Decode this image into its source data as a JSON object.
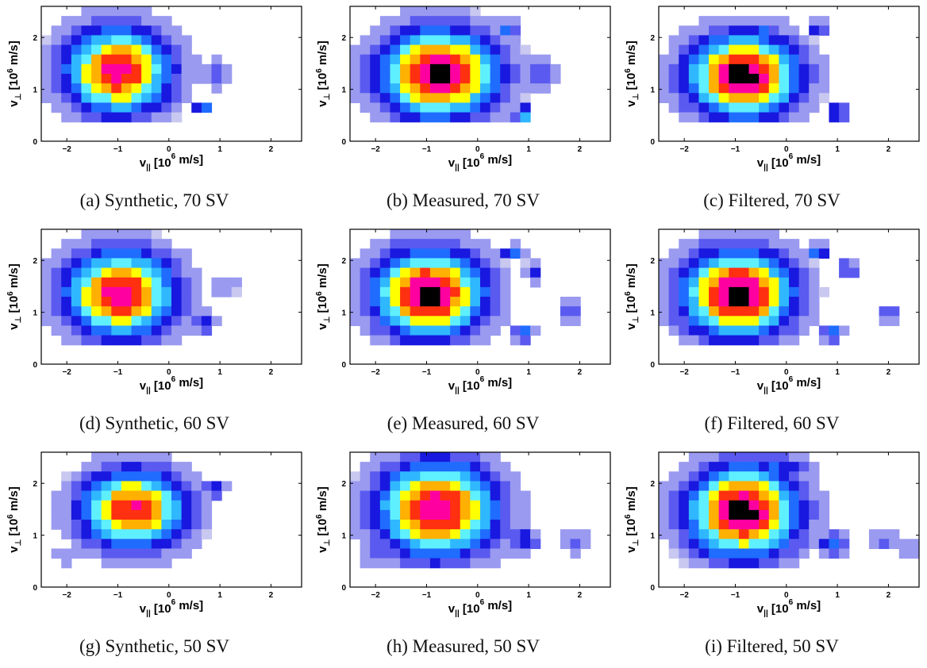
{
  "axis_labels": {
    "x_main": "v",
    "x_sub": "||",
    "x_unit_pre": " [10",
    "x_unit_exp": "6",
    "x_unit_post": " m/s]",
    "y_main": "v",
    "y_sub": "⊥",
    "y_unit_pre": " [10",
    "y_unit_exp": "6",
    "y_unit_post": " m/s]"
  },
  "colors": {
    "levels": [
      "#c8c8f0",
      "#9a9af0",
      "#5a5af0",
      "#1818e0",
      "#1f6cff",
      "#2fb8ff",
      "#5ff0ff",
      "#ffff00",
      "#ffb000",
      "#ff3010",
      "#ff00a0",
      "#000000"
    ]
  },
  "chart_data": [
    {
      "type": "heatmap",
      "caption": "(a) Synthetic, 70 SV",
      "xlim": [
        -2.5,
        2.6
      ],
      "ylim": [
        0,
        2.6
      ],
      "xticks": [
        -2,
        -1,
        0,
        1,
        2
      ],
      "yticks": [
        0,
        1,
        2
      ],
      "blobs": [
        {
          "cx": -1.0,
          "cy": 1.35,
          "rx": 1.3,
          "ry": 1.05,
          "peak": 0.88
        },
        {
          "cx": -1.25,
          "cy": 1.75,
          "rx": 0.25,
          "ry": 0.22,
          "peak": 0.35
        },
        {
          "cx": 0.65,
          "cy": 0.65,
          "rx": 0.18,
          "ry": 0.12,
          "peak": 0.5
        },
        {
          "cx": 0.9,
          "cy": 1.3,
          "rx": 0.45,
          "ry": 0.4,
          "peak": 0.2
        }
      ]
    },
    {
      "type": "heatmap",
      "caption": "(b) Measured, 70 SV",
      "xlim": [
        -2.5,
        2.6
      ],
      "ylim": [
        0,
        2.6
      ],
      "xticks": [
        -2,
        -1,
        0,
        1,
        2
      ],
      "yticks": [
        0,
        1,
        2
      ],
      "blobs": [
        {
          "cx": -0.75,
          "cy": 1.3,
          "rx": 1.45,
          "ry": 1.05,
          "peak": 0.98
        },
        {
          "cx": -1.55,
          "cy": 1.85,
          "rx": 0.22,
          "ry": 0.2,
          "peak": 0.45
        },
        {
          "cx": 0.6,
          "cy": 2.2,
          "rx": 0.25,
          "ry": 0.15,
          "peak": 0.5
        },
        {
          "cx": 0.9,
          "cy": 0.5,
          "rx": 0.2,
          "ry": 0.3,
          "peak": 0.5
        },
        {
          "cx": 1.2,
          "cy": 1.3,
          "rx": 0.45,
          "ry": 0.5,
          "peak": 0.25
        }
      ]
    },
    {
      "type": "heatmap",
      "caption": "(c) Filtered, 70 SV",
      "xlim": [
        -2.5,
        2.6
      ],
      "ylim": [
        0,
        2.6
      ],
      "xticks": [
        -2,
        -1,
        0,
        1,
        2
      ],
      "yticks": [
        0,
        1,
        2
      ],
      "blobs": [
        {
          "cx": -0.85,
          "cy": 1.25,
          "rx": 1.35,
          "ry": 1.0,
          "peak": 0.98
        },
        {
          "cx": -0.5,
          "cy": 2.1,
          "rx": 0.35,
          "ry": 0.25,
          "peak": 0.4
        },
        {
          "cx": 0.6,
          "cy": 2.2,
          "rx": 0.22,
          "ry": 0.15,
          "peak": 0.45
        },
        {
          "cx": 1.0,
          "cy": 0.55,
          "rx": 0.25,
          "ry": 0.25,
          "peak": 0.4
        },
        {
          "cx": -2.0,
          "cy": 0.7,
          "rx": 0.6,
          "ry": 0.3,
          "peak": 0.15
        }
      ]
    },
    {
      "type": "heatmap",
      "caption": "(d) Synthetic, 60 SV",
      "xlim": [
        -2.5,
        2.6
      ],
      "ylim": [
        0,
        2.6
      ],
      "xticks": [
        -2,
        -1,
        0,
        1,
        2
      ],
      "yticks": [
        0,
        1,
        2
      ],
      "blobs": [
        {
          "cx": -0.95,
          "cy": 1.35,
          "rx": 1.35,
          "ry": 1.05,
          "peak": 0.9
        },
        {
          "cx": -1.25,
          "cy": 1.8,
          "rx": 0.25,
          "ry": 0.25,
          "peak": 0.3
        },
        {
          "cx": 0.7,
          "cy": 0.8,
          "rx": 0.3,
          "ry": 0.25,
          "peak": 0.35
        },
        {
          "cx": 1.1,
          "cy": 1.5,
          "rx": 0.4,
          "ry": 0.4,
          "peak": 0.15
        }
      ]
    },
    {
      "type": "heatmap",
      "caption": "(e) Measured, 60 SV",
      "xlim": [
        -2.5,
        2.6
      ],
      "ylim": [
        0,
        2.6
      ],
      "xticks": [
        -2,
        -1,
        0,
        1,
        2
      ],
      "yticks": [
        0,
        1,
        2
      ],
      "blobs": [
        {
          "cx": -0.95,
          "cy": 1.35,
          "rx": 1.35,
          "ry": 1.05,
          "peak": 0.97
        },
        {
          "cx": 0.7,
          "cy": 2.15,
          "rx": 0.3,
          "ry": 0.2,
          "peak": 0.4
        },
        {
          "cx": 1.1,
          "cy": 1.8,
          "rx": 0.25,
          "ry": 0.25,
          "peak": 0.3
        },
        {
          "cx": 0.9,
          "cy": 0.6,
          "rx": 0.25,
          "ry": 0.2,
          "peak": 0.45
        },
        {
          "cx": 1.8,
          "cy": 1.05,
          "rx": 0.35,
          "ry": 0.35,
          "peak": 0.2
        }
      ]
    },
    {
      "type": "heatmap",
      "caption": "(f) Filtered, 60 SV",
      "xlim": [
        -2.5,
        2.6
      ],
      "ylim": [
        0,
        2.6
      ],
      "xticks": [
        -2,
        -1,
        0,
        1,
        2
      ],
      "yticks": [
        0,
        1,
        2
      ],
      "blobs": [
        {
          "cx": -0.95,
          "cy": 1.35,
          "rx": 1.35,
          "ry": 1.05,
          "peak": 0.98
        },
        {
          "cx": 0.6,
          "cy": 2.15,
          "rx": 0.25,
          "ry": 0.2,
          "peak": 0.45
        },
        {
          "cx": 1.2,
          "cy": 1.85,
          "rx": 0.25,
          "ry": 0.2,
          "peak": 0.35
        },
        {
          "cx": 0.9,
          "cy": 0.6,
          "rx": 0.25,
          "ry": 0.2,
          "peak": 0.45
        },
        {
          "cx": 2.0,
          "cy": 0.95,
          "rx": 0.3,
          "ry": 0.25,
          "peak": 0.25
        }
      ]
    },
    {
      "type": "heatmap",
      "caption": "(g) Synthetic, 50 SV",
      "xlim": [
        -2.5,
        2.6
      ],
      "ylim": [
        0,
        2.6
      ],
      "xticks": [
        -2,
        -1,
        0,
        1,
        2
      ],
      "yticks": [
        0,
        1,
        2
      ],
      "blobs": [
        {
          "cx": -0.7,
          "cy": 1.5,
          "rx": 1.3,
          "ry": 0.95,
          "peak": 0.85
        },
        {
          "cx": -1.3,
          "cy": 1.0,
          "rx": 0.25,
          "ry": 0.2,
          "peak": 0.3
        },
        {
          "cx": -2.0,
          "cy": 0.6,
          "rx": 0.5,
          "ry": 0.25,
          "peak": 0.15
        },
        {
          "cx": 0.9,
          "cy": 1.9,
          "rx": 0.3,
          "ry": 0.25,
          "peak": 0.3
        }
      ]
    },
    {
      "type": "heatmap",
      "caption": "(h) Measured, 50 SV",
      "xlim": [
        -2.5,
        2.6
      ],
      "ylim": [
        0,
        2.6
      ],
      "xticks": [
        -2,
        -1,
        0,
        1,
        2
      ],
      "yticks": [
        0,
        1,
        2
      ],
      "blobs": [
        {
          "cx": -0.8,
          "cy": 1.5,
          "rx": 1.45,
          "ry": 1.15,
          "peak": 0.92
        },
        {
          "cx": -0.3,
          "cy": 2.3,
          "rx": 0.9,
          "ry": 0.35,
          "peak": 0.35
        },
        {
          "cx": -1.5,
          "cy": 0.8,
          "rx": 0.5,
          "ry": 0.35,
          "peak": 0.35
        },
        {
          "cx": 0.9,
          "cy": 0.9,
          "rx": 0.4,
          "ry": 0.3,
          "peak": 0.35
        },
        {
          "cx": 1.9,
          "cy": 0.9,
          "rx": 0.5,
          "ry": 0.35,
          "peak": 0.2
        },
        {
          "cx": -1.9,
          "cy": 0.6,
          "rx": 0.6,
          "ry": 0.3,
          "peak": 0.2
        }
      ]
    },
    {
      "type": "heatmap",
      "caption": "(i) Filtered, 50 SV",
      "xlim": [
        -2.5,
        2.6
      ],
      "ylim": [
        0,
        2.6
      ],
      "xticks": [
        -2,
        -1,
        0,
        1,
        2
      ],
      "yticks": [
        0,
        1,
        2
      ],
      "blobs": [
        {
          "cx": -0.85,
          "cy": 1.45,
          "rx": 1.35,
          "ry": 1.1,
          "peak": 0.97
        },
        {
          "cx": -0.2,
          "cy": 2.3,
          "rx": 0.9,
          "ry": 0.35,
          "peak": 0.35
        },
        {
          "cx": -1.4,
          "cy": 0.7,
          "rx": 0.45,
          "ry": 0.35,
          "peak": 0.4
        },
        {
          "cx": 0.9,
          "cy": 0.85,
          "rx": 0.4,
          "ry": 0.3,
          "peak": 0.35
        },
        {
          "cx": 1.9,
          "cy": 0.9,
          "rx": 0.5,
          "ry": 0.3,
          "peak": 0.2
        },
        {
          "cx": 2.4,
          "cy": 0.7,
          "rx": 0.3,
          "ry": 0.3,
          "peak": 0.15
        }
      ]
    }
  ]
}
